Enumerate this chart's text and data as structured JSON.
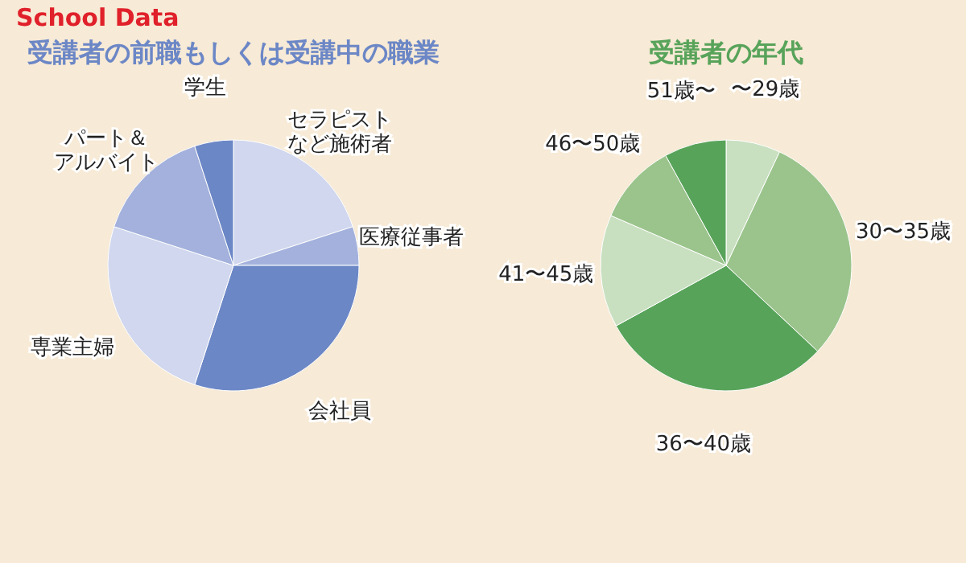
{
  "chart_data": [
    {
      "type": "pie",
      "title": "受講者の前職もしくは受講中の職業",
      "annotations": [
        "School Data"
      ],
      "legend": false,
      "categories": [
        "セラピストなど施術者",
        "医療従事者",
        "会社員",
        "専業主婦",
        "パート＆アルバイト",
        "学生"
      ],
      "values": [
        20,
        5,
        30,
        25,
        15,
        5
      ],
      "colors": [
        "#d0d7ee",
        "#a3b1dc",
        "#6c87c6",
        "#d0d7ee",
        "#a3b1dc",
        "#6c87c6"
      ]
    },
    {
      "type": "pie",
      "title": "受講者の年代",
      "legend": false,
      "categories": [
        "〜29歳",
        "30〜35歳",
        "36〜40歳",
        "41〜45歳",
        "46〜50歳",
        "51歳〜"
      ],
      "values": [
        7,
        30,
        30,
        14.5,
        10.5,
        8
      ],
      "colors": [
        "#c8e0c0",
        "#9bc48c",
        "#58a35a",
        "#c8e0c0",
        "#9bc48c",
        "#58a35a"
      ]
    }
  ]
}
